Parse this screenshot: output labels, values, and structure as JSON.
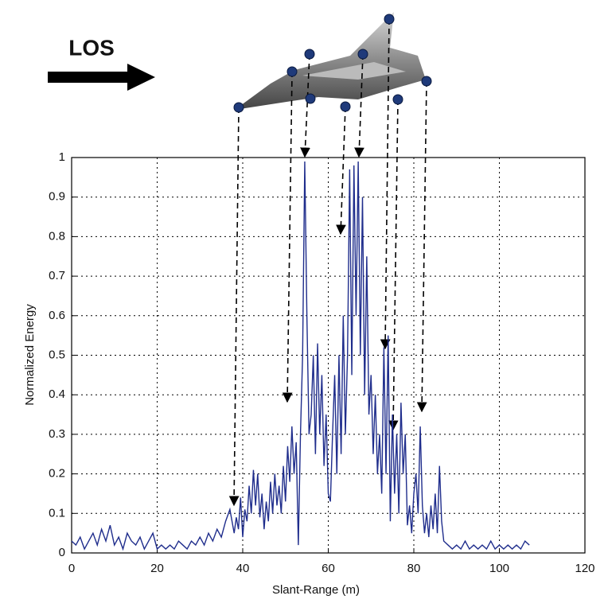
{
  "chart_data": {
    "type": "line",
    "annotation": "LOS",
    "xlabel": "Slant-Range (m)",
    "ylabel": "Normalized Energy",
    "color": "#1f2d8c",
    "grid": true,
    "xlim": [
      0,
      120
    ],
    "xticks": [
      0,
      20,
      40,
      60,
      80,
      100,
      120
    ],
    "ylim": [
      0,
      1
    ],
    "yticks": [
      0,
      0.1,
      0.2,
      0.3,
      0.4,
      0.5,
      0.6,
      0.7,
      0.8,
      0.9,
      1
    ],
    "x": [
      0,
      1,
      2,
      3,
      4,
      5,
      6,
      7,
      8,
      9,
      10,
      11,
      12,
      13,
      14,
      15,
      16,
      17,
      18,
      19,
      20,
      21,
      22,
      23,
      24,
      25,
      26,
      27,
      28,
      29,
      30,
      31,
      32,
      33,
      34,
      35,
      36,
      37,
      38,
      38.5,
      39,
      39.5,
      40,
      40.5,
      41,
      41.5,
      42,
      42.5,
      43,
      43.5,
      44,
      44.5,
      45,
      45.5,
      46,
      46.5,
      47,
      47.5,
      48,
      48.5,
      49,
      49.5,
      50,
      50.5,
      51,
      51.5,
      52,
      52.5,
      53,
      53.5,
      54,
      54.5,
      55,
      55.5,
      56,
      56.5,
      57,
      57.5,
      58,
      58.5,
      59,
      59.5,
      60,
      60.5,
      61,
      61.5,
      62,
      62.5,
      63,
      63.5,
      64,
      64.5,
      65,
      65.5,
      66,
      66.5,
      67,
      67.5,
      68,
      68.5,
      69,
      69.5,
      70,
      70.5,
      71,
      71.5,
      72,
      72.5,
      73,
      73.5,
      74,
      74.5,
      75,
      75.5,
      76,
      76.5,
      77,
      77.5,
      78,
      78.5,
      79,
      79.5,
      80,
      80.5,
      81,
      81.5,
      82,
      82.5,
      83,
      83.5,
      84,
      84.5,
      85,
      85.5,
      86,
      86.5,
      87,
      88,
      89,
      90,
      91,
      92,
      93,
      94,
      95,
      96,
      97,
      98,
      99,
      100,
      101,
      102,
      103,
      104,
      105,
      106,
      107
    ],
    "values": [
      0.03,
      0.02,
      0.04,
      0.01,
      0.03,
      0.05,
      0.02,
      0.06,
      0.03,
      0.07,
      0.02,
      0.04,
      0.01,
      0.05,
      0.03,
      0.02,
      0.04,
      0.01,
      0.03,
      0.05,
      0.01,
      0.02,
      0.01,
      0.02,
      0.01,
      0.03,
      0.02,
      0.01,
      0.03,
      0.02,
      0.04,
      0.02,
      0.05,
      0.03,
      0.06,
      0.04,
      0.08,
      0.11,
      0.05,
      0.09,
      0.06,
      0.14,
      0.04,
      0.11,
      0.08,
      0.17,
      0.1,
      0.21,
      0.12,
      0.2,
      0.09,
      0.15,
      0.06,
      0.13,
      0.08,
      0.18,
      0.1,
      0.2,
      0.12,
      0.17,
      0.1,
      0.22,
      0.13,
      0.27,
      0.18,
      0.32,
      0.2,
      0.28,
      0.02,
      0.3,
      0.5,
      0.99,
      0.6,
      0.3,
      0.35,
      0.5,
      0.25,
      0.53,
      0.3,
      0.45,
      0.22,
      0.35,
      0.15,
      0.13,
      0.3,
      0.45,
      0.2,
      0.5,
      0.25,
      0.6,
      0.3,
      0.5,
      0.97,
      0.45,
      0.98,
      0.6,
      0.99,
      0.5,
      0.9,
      0.4,
      0.75,
      0.35,
      0.45,
      0.25,
      0.4,
      0.2,
      0.3,
      0.15,
      0.52,
      0.2,
      0.55,
      0.08,
      0.35,
      0.15,
      0.3,
      0.1,
      0.38,
      0.2,
      0.3,
      0.07,
      0.12,
      0.05,
      0.15,
      0.2,
      0.1,
      0.32,
      0.12,
      0.05,
      0.1,
      0.04,
      0.12,
      0.06,
      0.15,
      0.05,
      0.22,
      0.08,
      0.03,
      0.02,
      0.01,
      0.02,
      0.01,
      0.03,
      0.01,
      0.02,
      0.01,
      0.02,
      0.01,
      0.03,
      0.01,
      0.02,
      0.01,
      0.02,
      0.01,
      0.02,
      0.01,
      0.03,
      0.02
    ]
  }
}
